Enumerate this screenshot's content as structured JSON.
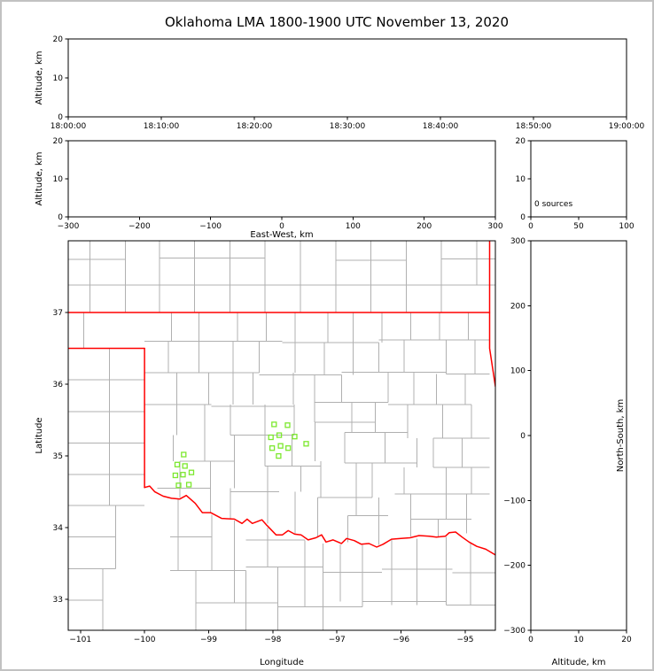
{
  "title": "Oklahoma LMA 1800-1900 UTC November 13, 2020",
  "colors": {
    "axes": "#000000",
    "county": "#b0b0b0",
    "state_border": "#ff0000",
    "station": "#7ce82e",
    "background": "#ffffff",
    "frame": "#c2c2c2"
  },
  "chart_data": [
    {
      "id": "time-height",
      "type": "scatter",
      "ylabel": "Altitude, km",
      "xtick_labels": [
        "18:00:00",
        "18:10:00",
        "18:20:00",
        "18:30:00",
        "18:40:00",
        "18:50:00",
        "19:00:00"
      ],
      "ylim": [
        0,
        20
      ],
      "yticks": [
        0,
        10,
        20
      ],
      "points": []
    },
    {
      "id": "ew-height",
      "type": "scatter",
      "xlabel": "East-West, km",
      "ylabel": "Altitude, km",
      "xlim": [
        -300,
        300
      ],
      "xticks": [
        -300,
        -200,
        -100,
        0,
        100,
        200,
        300
      ],
      "ylim": [
        0,
        20
      ],
      "yticks": [
        0,
        10,
        20
      ],
      "points": []
    },
    {
      "id": "alt-histogram",
      "type": "line",
      "annotation": "0 sources",
      "xlim": [
        0,
        100
      ],
      "xticks": [
        0,
        50,
        100
      ],
      "ylim": [
        0,
        20
      ],
      "yticks": [
        0,
        10,
        20
      ],
      "points": []
    },
    {
      "id": "plan-view",
      "type": "map",
      "xlabel": "Longitude",
      "ylabel": "Latitude",
      "xlim": [
        -101.19,
        -94.53
      ],
      "xticks": [
        -101,
        -100,
        -99,
        -98,
        -97,
        -96,
        -95
      ],
      "ylim": [
        32.57,
        38.0
      ],
      "yticks": [
        33,
        34,
        35,
        36,
        37
      ],
      "stations": [
        [
          -97.98,
          35.44
        ],
        [
          -97.77,
          35.43
        ],
        [
          -98.03,
          35.26
        ],
        [
          -97.9,
          35.29
        ],
        [
          -97.66,
          35.27
        ],
        [
          -98.01,
          35.11
        ],
        [
          -97.88,
          35.14
        ],
        [
          -97.76,
          35.11
        ],
        [
          -97.91,
          35.0
        ],
        [
          -97.48,
          35.17
        ],
        [
          -99.39,
          35.02
        ],
        [
          -99.49,
          34.88
        ],
        [
          -99.37,
          34.86
        ],
        [
          -99.52,
          34.73
        ],
        [
          -99.4,
          34.74
        ],
        [
          -99.27,
          34.77
        ],
        [
          -99.47,
          34.59
        ],
        [
          -99.31,
          34.6
        ]
      ],
      "state_border": [
        [
          [
            -101.19,
            37.0
          ],
          [
            -94.62,
            37.0
          ]
        ],
        [
          [
            -101.19,
            36.5
          ],
          [
            -100.0,
            36.5
          ]
        ],
        [
          [
            -100.0,
            36.5
          ],
          [
            -100.0,
            34.56
          ]
        ],
        [
          [
            -100.0,
            34.56
          ],
          [
            -99.92,
            34.58
          ],
          [
            -99.84,
            34.5
          ],
          [
            -99.71,
            34.44
          ],
          [
            -99.58,
            34.41
          ],
          [
            -99.45,
            34.4
          ],
          [
            -99.35,
            34.45
          ],
          [
            -99.21,
            34.34
          ],
          [
            -99.1,
            34.21
          ],
          [
            -98.97,
            34.21
          ],
          [
            -98.8,
            34.13
          ],
          [
            -98.6,
            34.12
          ],
          [
            -98.48,
            34.06
          ],
          [
            -98.4,
            34.12
          ],
          [
            -98.32,
            34.06
          ],
          [
            -98.17,
            34.11
          ],
          [
            -98.09,
            34.03
          ],
          [
            -97.95,
            33.9
          ],
          [
            -97.85,
            33.9
          ],
          [
            -97.76,
            33.96
          ],
          [
            -97.66,
            33.91
          ],
          [
            -97.56,
            33.9
          ],
          [
            -97.45,
            33.83
          ],
          [
            -97.33,
            33.86
          ],
          [
            -97.24,
            33.9
          ],
          [
            -97.17,
            33.8
          ],
          [
            -97.06,
            33.83
          ],
          [
            -96.93,
            33.78
          ],
          [
            -96.85,
            33.85
          ],
          [
            -96.73,
            33.82
          ],
          [
            -96.62,
            33.77
          ],
          [
            -96.5,
            33.78
          ],
          [
            -96.38,
            33.73
          ],
          [
            -96.28,
            33.77
          ],
          [
            -96.15,
            33.84
          ],
          [
            -96.0,
            33.85
          ],
          [
            -95.86,
            33.86
          ],
          [
            -95.72,
            33.89
          ],
          [
            -95.56,
            33.88
          ],
          [
            -95.45,
            33.87
          ],
          [
            -95.31,
            33.88
          ],
          [
            -95.25,
            33.93
          ],
          [
            -95.15,
            33.94
          ],
          [
            -95.05,
            33.87
          ],
          [
            -94.94,
            33.8
          ],
          [
            -94.82,
            33.74
          ],
          [
            -94.68,
            33.7
          ],
          [
            -94.53,
            33.62
          ]
        ],
        [
          [
            -94.62,
            38.0
          ],
          [
            -94.62,
            36.5
          ],
          [
            -94.53,
            35.97
          ]
        ]
      ],
      "counties": {
        "h": [
          [
            37.38,
            -101.19,
            -94.53
          ],
          [
            37.74,
            -101.19,
            -100.3
          ],
          [
            37.76,
            -99.77,
            -98.12
          ],
          [
            37.73,
            -97.02,
            -95.92
          ],
          [
            37.75,
            -95.37,
            -94.53
          ],
          [
            36.6,
            -100.0,
            -97.85
          ],
          [
            36.58,
            -97.85,
            -96.35
          ],
          [
            36.62,
            -96.35,
            -94.62
          ],
          [
            36.16,
            -100.0,
            -98.21
          ],
          [
            36.13,
            -98.21,
            -96.93
          ],
          [
            36.17,
            -96.93,
            -95.3
          ],
          [
            36.14,
            -95.3,
            -94.62
          ],
          [
            35.72,
            -100.0,
            -98.96
          ],
          [
            35.69,
            -98.96,
            -97.67
          ],
          [
            35.75,
            -97.35,
            -96.2
          ],
          [
            35.72,
            -96.2,
            -94.9
          ],
          [
            35.47,
            -97.35,
            -96.4
          ],
          [
            35.29,
            -98.66,
            -97.67
          ],
          [
            35.33,
            -96.88,
            -95.9
          ],
          [
            35.25,
            -95.5,
            -94.62
          ],
          [
            34.93,
            -99.45,
            -98.6
          ],
          [
            34.86,
            -98.12,
            -97.25
          ],
          [
            34.9,
            -96.88,
            -95.75
          ],
          [
            34.84,
            -95.5,
            -94.62
          ],
          [
            34.55,
            -99.8,
            -98.97
          ],
          [
            34.5,
            -98.66,
            -97.9
          ],
          [
            34.42,
            -97.3,
            -96.45
          ],
          [
            34.47,
            -96.1,
            -94.62
          ],
          [
            34.17,
            -96.83,
            -96.2
          ],
          [
            34.12,
            -95.85,
            -94.9
          ],
          [
            36.06,
            -101.19,
            -100.0
          ],
          [
            35.62,
            -101.19,
            -100.0
          ],
          [
            35.18,
            -101.19,
            -100.0
          ],
          [
            34.74,
            -101.19,
            -100.0
          ],
          [
            34.31,
            -101.19,
            -100.0
          ],
          [
            33.87,
            -101.19,
            -100.45
          ],
          [
            33.43,
            -101.19,
            -100.45
          ],
          [
            32.99,
            -101.19,
            -100.65
          ],
          [
            33.87,
            -99.6,
            -98.95
          ],
          [
            33.83,
            -98.42,
            -97.5
          ],
          [
            33.4,
            -99.6,
            -98.42
          ],
          [
            33.45,
            -98.42,
            -97.22
          ],
          [
            33.38,
            -97.22,
            -96.3
          ],
          [
            33.42,
            -96.3,
            -95.2
          ],
          [
            33.37,
            -95.2,
            -94.53
          ],
          [
            32.95,
            -99.2,
            -97.92
          ],
          [
            32.9,
            -97.92,
            -96.6
          ],
          [
            32.97,
            -96.6,
            -95.3
          ],
          [
            32.92,
            -95.3,
            -94.53
          ]
        ],
        "v": [
          [
            -100.95,
            37.0,
            36.5
          ],
          [
            -100.85,
            38.0,
            37.0
          ],
          [
            -100.3,
            38.0,
            37.0
          ],
          [
            -99.77,
            38.0,
            37.0
          ],
          [
            -99.22,
            38.0,
            37.0
          ],
          [
            -98.67,
            38.0,
            37.0
          ],
          [
            -98.12,
            38.0,
            37.0
          ],
          [
            -97.57,
            38.0,
            37.0
          ],
          [
            -97.02,
            38.0,
            37.0
          ],
          [
            -96.47,
            38.0,
            37.0
          ],
          [
            -95.92,
            38.0,
            37.0
          ],
          [
            -95.37,
            38.0,
            37.0
          ],
          [
            -94.82,
            38.0,
            37.38
          ],
          [
            -100.55,
            36.5,
            34.31
          ],
          [
            -100.45,
            34.31,
            33.43
          ],
          [
            -100.65,
            33.43,
            32.57
          ],
          [
            -99.58,
            37.0,
            36.6
          ],
          [
            -99.63,
            36.6,
            36.16
          ],
          [
            -99.5,
            36.16,
            35.29
          ],
          [
            -99.55,
            35.29,
            34.93
          ],
          [
            -99.45,
            34.93,
            34.42
          ],
          [
            -99.15,
            37.0,
            36.16
          ],
          [
            -99.0,
            36.16,
            35.72
          ],
          [
            -99.06,
            35.72,
            34.93
          ],
          [
            -98.97,
            34.93,
            34.2
          ],
          [
            -98.55,
            37.0,
            36.6
          ],
          [
            -98.62,
            36.6,
            35.72
          ],
          [
            -98.66,
            35.72,
            35.29
          ],
          [
            -98.6,
            35.29,
            34.55
          ],
          [
            -98.66,
            34.55,
            34.11
          ],
          [
            -98.1,
            37.0,
            36.6
          ],
          [
            -98.21,
            36.6,
            36.16
          ],
          [
            -98.31,
            36.16,
            35.72
          ],
          [
            -98.12,
            35.72,
            34.86
          ],
          [
            -98.08,
            34.86,
            34.06
          ],
          [
            -97.65,
            37.0,
            36.16
          ],
          [
            -97.68,
            36.16,
            35.72
          ],
          [
            -97.67,
            35.72,
            35.29
          ],
          [
            -97.7,
            35.29,
            34.86
          ],
          [
            -97.56,
            34.86,
            34.5
          ],
          [
            -97.65,
            34.5,
            33.91
          ],
          [
            -97.14,
            37.0,
            36.58
          ],
          [
            -97.2,
            36.58,
            36.13
          ],
          [
            -97.35,
            36.13,
            35.47
          ],
          [
            -97.34,
            35.47,
            34.93
          ],
          [
            -97.25,
            34.93,
            34.42
          ],
          [
            -97.3,
            34.42,
            33.86
          ],
          [
            -96.75,
            37.0,
            36.13
          ],
          [
            -96.93,
            36.13,
            35.75
          ],
          [
            -96.77,
            35.75,
            35.33
          ],
          [
            -96.88,
            35.33,
            34.9
          ],
          [
            -96.7,
            34.9,
            34.17
          ],
          [
            -96.83,
            34.17,
            33.8
          ],
          [
            -96.3,
            37.0,
            36.58
          ],
          [
            -96.35,
            36.58,
            36.17
          ],
          [
            -96.2,
            36.17,
            35.75
          ],
          [
            -96.4,
            35.75,
            35.33
          ],
          [
            -96.25,
            35.33,
            34.9
          ],
          [
            -96.45,
            34.9,
            34.42
          ],
          [
            -96.35,
            34.42,
            33.76
          ],
          [
            -95.85,
            37.0,
            36.62
          ],
          [
            -95.95,
            36.62,
            36.17
          ],
          [
            -95.8,
            36.17,
            35.72
          ],
          [
            -95.9,
            35.72,
            35.25
          ],
          [
            -95.75,
            35.25,
            34.84
          ],
          [
            -95.95,
            34.84,
            34.47
          ],
          [
            -95.85,
            34.47,
            33.88
          ],
          [
            -95.4,
            37.0,
            36.62
          ],
          [
            -95.3,
            36.62,
            36.14
          ],
          [
            -95.45,
            36.14,
            35.72
          ],
          [
            -95.35,
            35.72,
            35.25
          ],
          [
            -95.5,
            35.25,
            34.84
          ],
          [
            -95.3,
            34.84,
            34.12
          ],
          [
            -95.42,
            34.12,
            33.88
          ],
          [
            -94.95,
            37.0,
            36.62
          ],
          [
            -94.85,
            36.62,
            36.14
          ],
          [
            -95.0,
            36.14,
            35.72
          ],
          [
            -94.9,
            35.72,
            35.25
          ],
          [
            -95.05,
            35.25,
            34.84
          ],
          [
            -94.9,
            34.84,
            34.47
          ],
          [
            -94.98,
            34.47,
            33.92
          ],
          [
            -99.48,
            34.4,
            33.4
          ],
          [
            -99.2,
            33.4,
            32.57
          ],
          [
            -98.95,
            34.18,
            33.4
          ],
          [
            -98.6,
            34.1,
            32.95
          ],
          [
            -98.42,
            33.4,
            32.57
          ],
          [
            -98.08,
            34.0,
            33.45
          ],
          [
            -97.92,
            33.45,
            32.57
          ],
          [
            -97.5,
            33.82,
            32.9
          ],
          [
            -97.22,
            33.78,
            32.57
          ],
          [
            -96.95,
            33.77,
            32.97
          ],
          [
            -96.6,
            33.76,
            32.9
          ],
          [
            -96.15,
            33.83,
            32.92
          ],
          [
            -95.75,
            33.85,
            32.92
          ],
          [
            -95.3,
            33.87,
            32.92
          ],
          [
            -94.92,
            33.78,
            32.92
          ]
        ]
      }
    },
    {
      "id": "ns-height",
      "type": "scatter",
      "xlabel": "Altitude, km",
      "ylabel_right": "North-South, km",
      "xlim": [
        0,
        20
      ],
      "xticks": [
        0,
        10,
        20
      ],
      "ylim": [
        -300,
        300
      ],
      "yticks": [
        -300,
        -200,
        -100,
        0,
        100,
        200,
        300
      ],
      "points": []
    }
  ]
}
